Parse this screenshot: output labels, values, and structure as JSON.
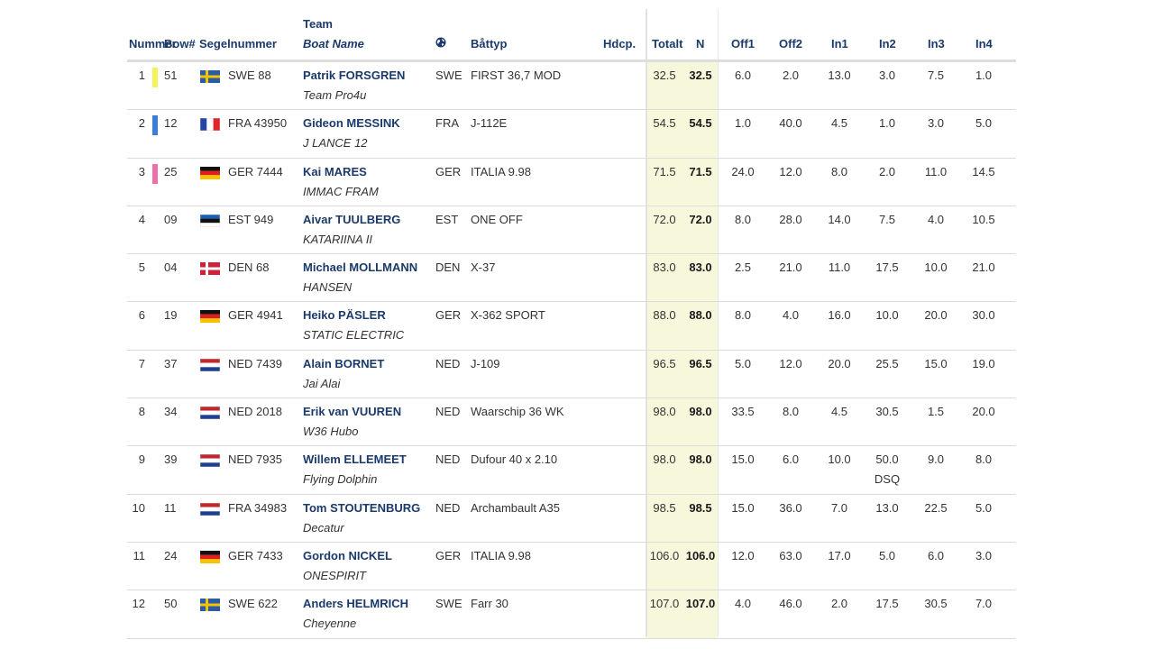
{
  "headers": {
    "nummer": "Nummer",
    "bow": "Bow#",
    "segelnummer": "Segelnummer",
    "team": "Team",
    "boat_name": "Boat Name",
    "nation_icon": "globe-icon",
    "battyp": "Båttyp",
    "hdcp": "Hdcp.",
    "totalt": "Totalt",
    "n": "N",
    "off1": "Off1",
    "off2": "Off2",
    "in1": "In1",
    "in2": "In2",
    "in3": "In3",
    "in4": "In4"
  },
  "rows": [
    {
      "num": "1",
      "color": "#f5f25a",
      "bow": "51",
      "flag": "SWE",
      "sail": "SWE 88",
      "skipper": "Patrik FORSGREN",
      "boat": "Team Pro4u",
      "nat": "SWE",
      "type": "FIRST 36,7 MOD",
      "total": "32.5",
      "net": "32.5",
      "r": [
        "6.0",
        "2.0",
        "13.0",
        "3.0",
        "7.5",
        "1.0"
      ],
      "note": ""
    },
    {
      "num": "2",
      "color": "#3b7ddd",
      "bow": "12",
      "flag": "FRA",
      "sail": "FRA 43950",
      "skipper": "Gideon MESSINK",
      "boat": "J LANCE 12",
      "nat": "FRA",
      "type": "J-112E",
      "total": "54.5",
      "net": "54.5",
      "r": [
        "1.0",
        "40.0",
        "4.5",
        "1.0",
        "3.0",
        "5.0"
      ],
      "note": ""
    },
    {
      "num": "3",
      "color": "#f06eaa",
      "bow": "25",
      "flag": "GER",
      "sail": "GER 7444",
      "skipper": "Kai MARES",
      "boat": "IMMAC FRAM",
      "nat": "GER",
      "type": "ITALIA 9.98",
      "total": "71.5",
      "net": "71.5",
      "r": [
        "24.0",
        "12.0",
        "8.0",
        "2.0",
        "11.0",
        "14.5"
      ],
      "note": ""
    },
    {
      "num": "4",
      "color": "",
      "bow": "09",
      "flag": "EST",
      "sail": "EST 949",
      "skipper": "Aivar TUULBERG",
      "boat": "KATARIINA II",
      "nat": "EST",
      "type": "ONE OFF",
      "total": "72.0",
      "net": "72.0",
      "r": [
        "8.0",
        "28.0",
        "14.0",
        "7.5",
        "4.0",
        "10.5"
      ],
      "note": ""
    },
    {
      "num": "5",
      "color": "",
      "bow": "04",
      "flag": "DEN",
      "sail": "DEN 68",
      "skipper": "Michael MOLLMANN",
      "boat": "HANSEN",
      "nat": "DEN",
      "type": "X-37",
      "total": "83.0",
      "net": "83.0",
      "r": [
        "2.5",
        "21.0",
        "11.0",
        "17.5",
        "10.0",
        "21.0"
      ],
      "note": ""
    },
    {
      "num": "6",
      "color": "",
      "bow": "19",
      "flag": "GER",
      "sail": "GER 4941",
      "skipper": "Heiko PÄSLER",
      "boat": "STATIC ELECTRIC",
      "nat": "GER",
      "type": "X-362 SPORT",
      "total": "88.0",
      "net": "88.0",
      "r": [
        "8.0",
        "4.0",
        "16.0",
        "10.0",
        "20.0",
        "30.0"
      ],
      "note": ""
    },
    {
      "num": "7",
      "color": "",
      "bow": "37",
      "flag": "NED",
      "sail": "NED 7439",
      "skipper": "Alain BORNET",
      "boat": "Jai Alai",
      "nat": "NED",
      "type": "J-109",
      "total": "96.5",
      "net": "96.5",
      "r": [
        "5.0",
        "12.0",
        "20.0",
        "25.5",
        "15.0",
        "19.0"
      ],
      "note": ""
    },
    {
      "num": "8",
      "color": "",
      "bow": "34",
      "flag": "NED",
      "sail": "NED 2018",
      "skipper": "Erik van VUUREN",
      "boat": "W36 Hubo",
      "nat": "NED",
      "type": "Waarschip 36 WK",
      "total": "98.0",
      "net": "98.0",
      "r": [
        "33.5",
        "8.0",
        "4.5",
        "30.5",
        "1.5",
        "20.0"
      ],
      "note": ""
    },
    {
      "num": "9",
      "color": "",
      "bow": "39",
      "flag": "NED",
      "sail": "NED 7935",
      "skipper": "Willem ELLEMEET",
      "boat": "Flying Dolphin",
      "nat": "NED",
      "type": "Dufour 40 x 2.10",
      "total": "98.0",
      "net": "98.0",
      "r": [
        "15.0",
        "6.0",
        "10.0",
        "50.0",
        "9.0",
        "8.0"
      ],
      "note": "DSQ"
    },
    {
      "num": "10",
      "color": "",
      "bow": "11",
      "flag": "NED",
      "sail": "FRA 34983",
      "skipper": "Tom STOUTENBURG",
      "boat": "Decatur",
      "nat": "NED",
      "type": "Archambault A35",
      "total": "98.5",
      "net": "98.5",
      "r": [
        "15.0",
        "36.0",
        "7.0",
        "13.0",
        "22.5",
        "5.0"
      ],
      "note": ""
    },
    {
      "num": "11",
      "color": "",
      "bow": "24",
      "flag": "GER",
      "sail": "GER 7433",
      "skipper": "Gordon NICKEL",
      "boat": "ONESPIRIT",
      "nat": "GER",
      "type": "ITALIA 9.98",
      "total": "106.0",
      "net": "106.0",
      "r": [
        "12.0",
        "63.0",
        "17.0",
        "5.0",
        "6.0",
        "3.0"
      ],
      "note": ""
    },
    {
      "num": "12",
      "color": "",
      "bow": "50",
      "flag": "SWE",
      "sail": "SWE 622",
      "skipper": "Anders HELMRICH",
      "boat": "Cheyenne",
      "nat": "SWE",
      "type": "Farr 30",
      "total": "107.0",
      "net": "107.0",
      "r": [
        "4.0",
        "46.0",
        "2.0",
        "17.5",
        "30.5",
        "7.0"
      ],
      "note": ""
    }
  ]
}
